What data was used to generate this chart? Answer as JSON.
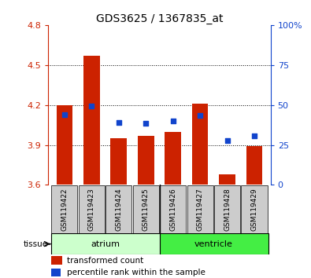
{
  "title": "GDS3625 / 1367835_at",
  "samples": [
    "GSM119422",
    "GSM119423",
    "GSM119424",
    "GSM119425",
    "GSM119426",
    "GSM119427",
    "GSM119428",
    "GSM119429"
  ],
  "bar_base": 3.6,
  "bar_tops": [
    4.2,
    4.57,
    3.95,
    3.97,
    4.0,
    4.21,
    3.68,
    3.89
  ],
  "blue_left_values": [
    4.13,
    4.19,
    4.07,
    4.06,
    4.08,
    4.12,
    3.93,
    3.97
  ],
  "ylim_left": [
    3.6,
    4.8
  ],
  "ylim_right": [
    0,
    100
  ],
  "yticks_left": [
    3.6,
    3.9,
    4.2,
    4.5,
    4.8
  ],
  "ytick_labels_left": [
    "3.6",
    "3.9",
    "4.2",
    "4.5",
    "4.8"
  ],
  "yticks_right": [
    0,
    25,
    50,
    75,
    100
  ],
  "ytick_labels_right": [
    "0",
    "25",
    "50",
    "75",
    "100%"
  ],
  "bar_color": "#cc2200",
  "blue_color": "#1144cc",
  "bar_width": 0.6,
  "atrium_color": "#ccffcc",
  "ventricle_color": "#44ee44",
  "left_axis_color": "#cc2200",
  "right_axis_color": "#1144cc",
  "xticklabel_bg": "#cccccc",
  "grid_yticks": [
    3.9,
    4.2,
    4.5
  ]
}
